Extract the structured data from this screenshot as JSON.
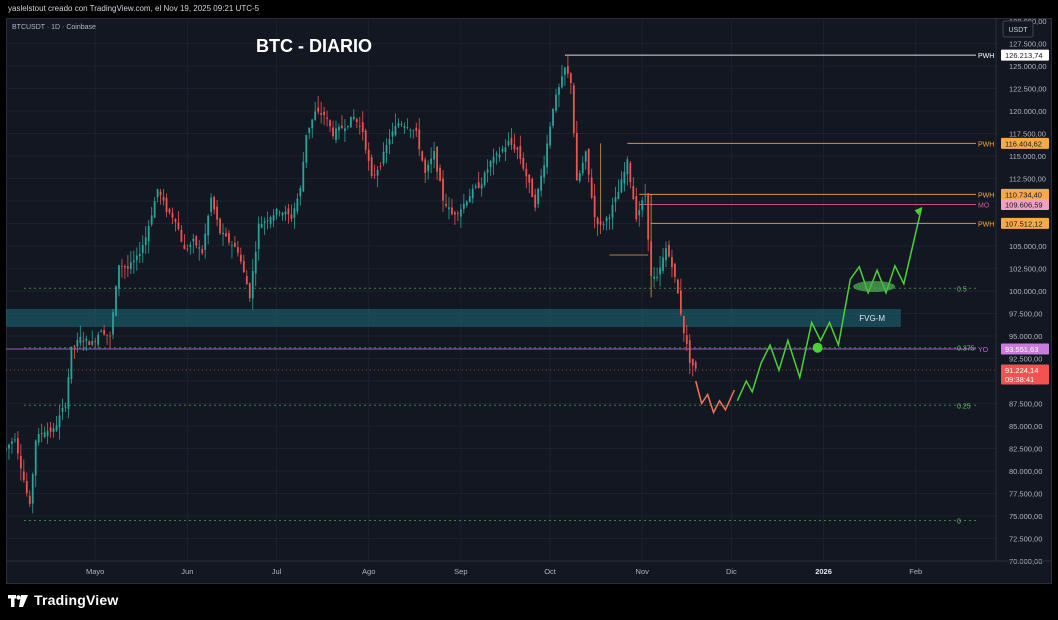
{
  "header": {
    "caption": "yaslelstout creado con TradingView.com, el Nov 19, 2025 09:21 UTC-5"
  },
  "footer": {
    "brand": "TradingView",
    "logo_icon": "tradingview-logo-icon"
  },
  "chart_data": {
    "type": "candlestick",
    "symbol_label": "BTCUSDT · 1D · Coinbase",
    "title": "BTC - DIARIO",
    "currency": "USDT",
    "ylim": [
      70000,
      130000
    ],
    "y_ticks": [
      "70.000,00",
      "72.500,00",
      "75.000,00",
      "77.500,00",
      "80.000,00",
      "82.500,00",
      "85.000,00",
      "87.500,00",
      "90.000,00",
      "92.500,00",
      "95.000,00",
      "97.500,00",
      "100.000,00",
      "102.500,00",
      "105.000,00",
      "107.500,00",
      "110.000,00",
      "112.500,00",
      "115.000,00",
      "117.500,00",
      "120.000,00",
      "122.500,00",
      "125.000,00",
      "127.500,00"
    ],
    "y_tick_values": [
      70000,
      72500,
      75000,
      77500,
      80000,
      82500,
      85000,
      87500,
      90000,
      92500,
      95000,
      97500,
      100000,
      102500,
      105000,
      107500,
      110000,
      112500,
      115000,
      117500,
      120000,
      122500,
      125000,
      127500
    ],
    "x_labels": [
      "Mayo",
      "Jun",
      "Jul",
      "Ago",
      "Sep",
      "Oct",
      "Nov",
      "Dic",
      "2026",
      "Feb"
    ],
    "x_label_dates": [
      "2025-05-01",
      "2025-06-01",
      "2025-07-01",
      "2025-08-01",
      "2025-09-01",
      "2025-10-01",
      "2025-11-01",
      "2025-12-01",
      "2026-01-01",
      "2026-02-01"
    ],
    "x_range": [
      "2025-04-01",
      "2026-02-28"
    ],
    "close_series": [
      [
        "2025-04-01",
        82500
      ],
      [
        "2025-04-04",
        83800
      ],
      [
        "2025-04-07",
        79000
      ],
      [
        "2025-04-09",
        76000
      ],
      [
        "2025-04-11",
        83500
      ],
      [
        "2025-04-14",
        84500
      ],
      [
        "2025-04-17",
        84500
      ],
      [
        "2025-04-21",
        87500
      ],
      [
        "2025-04-23",
        93500
      ],
      [
        "2025-04-26",
        94700
      ],
      [
        "2025-04-30",
        94200
      ],
      [
        "2025-05-03",
        95800
      ],
      [
        "2025-05-06",
        94800
      ],
      [
        "2025-05-09",
        103000
      ],
      [
        "2025-05-12",
        102500
      ],
      [
        "2025-05-15",
        103600
      ],
      [
        "2025-05-18",
        106000
      ],
      [
        "2025-05-22",
        111300
      ],
      [
        "2025-05-25",
        109000
      ],
      [
        "2025-05-28",
        108000
      ],
      [
        "2025-05-31",
        104500
      ],
      [
        "2025-06-03",
        105500
      ],
      [
        "2025-06-06",
        104300
      ],
      [
        "2025-06-09",
        110300
      ],
      [
        "2025-06-12",
        106500
      ],
      [
        "2025-06-15",
        105500
      ],
      [
        "2025-06-18",
        104500
      ],
      [
        "2025-06-22",
        99500
      ],
      [
        "2025-06-25",
        107300
      ],
      [
        "2025-06-29",
        108400
      ],
      [
        "2025-07-02",
        109000
      ],
      [
        "2025-07-06",
        108200
      ],
      [
        "2025-07-09",
        111300
      ],
      [
        "2025-07-11",
        117500
      ],
      [
        "2025-07-14",
        119800
      ],
      [
        "2025-07-17",
        119600
      ],
      [
        "2025-07-20",
        117500
      ],
      [
        "2025-07-24",
        118400
      ],
      [
        "2025-07-27",
        119300
      ],
      [
        "2025-07-30",
        117800
      ],
      [
        "2025-08-02",
        112500
      ],
      [
        "2025-08-05",
        114200
      ],
      [
        "2025-08-08",
        117000
      ],
      [
        "2025-08-11",
        118700
      ],
      [
        "2025-08-14",
        118500
      ],
      [
        "2025-08-17",
        117500
      ],
      [
        "2025-08-20",
        113000
      ],
      [
        "2025-08-23",
        115300
      ],
      [
        "2025-08-26",
        110200
      ],
      [
        "2025-08-29",
        108500
      ],
      [
        "2025-09-01",
        109200
      ],
      [
        "2025-09-04",
        110700
      ],
      [
        "2025-09-08",
        112100
      ],
      [
        "2025-09-11",
        114300
      ],
      [
        "2025-09-14",
        115300
      ],
      [
        "2025-09-17",
        116500
      ],
      [
        "2025-09-20",
        115700
      ],
      [
        "2025-09-23",
        112800
      ],
      [
        "2025-09-26",
        109600
      ],
      [
        "2025-09-29",
        114300
      ],
      [
        "2025-10-02",
        120500
      ],
      [
        "2025-10-05",
        123500
      ],
      [
        "2025-10-06",
        124700
      ],
      [
        "2025-10-08",
        123300
      ],
      [
        "2025-10-10",
        112000
      ],
      [
        "2025-10-13",
        115200
      ],
      [
        "2025-10-16",
        108200
      ],
      [
        "2025-10-18",
        107200
      ],
      [
        "2025-10-21",
        108500
      ],
      [
        "2025-10-24",
        111000
      ],
      [
        "2025-10-27",
        114300
      ],
      [
        "2025-10-30",
        108300
      ],
      [
        "2025-11-02",
        110600
      ],
      [
        "2025-11-04",
        101500
      ],
      [
        "2025-11-06",
        101300
      ],
      [
        "2025-11-09",
        104700
      ],
      [
        "2025-11-11",
        103000
      ],
      [
        "2025-11-13",
        99700
      ],
      [
        "2025-11-15",
        95500
      ],
      [
        "2025-11-17",
        92300
      ],
      [
        "2025-11-19",
        91200
      ]
    ],
    "levels": [
      {
        "label": "PWH",
        "value": 126213.74,
        "text": "126.213,74",
        "color": "#ffffff",
        "tag_bg": "#ffffff",
        "tag_fg": "#131722"
      },
      {
        "label": "PWH",
        "value": 116404.62,
        "text": "116.404,62",
        "color": "#f7a94a",
        "tag_bg": "#f7a94a",
        "tag_fg": "#131722"
      },
      {
        "label": "PWH",
        "value": 110734.4,
        "text": "110.734,40",
        "color": "#f7a94a",
        "tag_bg": "#f7a94a",
        "tag_fg": "#131722"
      },
      {
        "label": "MO",
        "value": 109606.59,
        "text": "109.606,59",
        "color": "#e05a9a",
        "tag_bg": "#f0a0c0",
        "tag_fg": "#131722"
      },
      {
        "label": "PWH",
        "value": 107512.12,
        "text": "107.512,12",
        "color": "#f7a94a",
        "tag_bg": "#f7a94a",
        "tag_fg": "#131722"
      },
      {
        "label": "YO",
        "value": 93551.63,
        "text": "93.551,63",
        "color": "#b46bd9",
        "tag_bg": "#c77dd9",
        "tag_fg": "#ffffff"
      }
    ],
    "last_price": {
      "value": 91224.14,
      "text": "91.224,14",
      "countdown": "09:38:41",
      "color": "#f05350"
    },
    "fib_levels": [
      {
        "label": "0.5",
        "value": 100300
      },
      {
        "label": "0.375",
        "value": 93700
      },
      {
        "label": "0.25",
        "value": 87300
      },
      {
        "label": "0",
        "value": 74500
      }
    ],
    "fvg_zone": {
      "label": "FVG-M",
      "from": 96000,
      "to": 98000
    },
    "projection_red": [
      [
        "2025-11-19",
        90000
      ],
      [
        "2025-11-21",
        87500
      ],
      [
        "2025-11-23",
        88500
      ],
      [
        "2025-11-25",
        86500
      ],
      [
        "2025-11-27",
        87800
      ],
      [
        "2025-11-29",
        86800
      ],
      [
        "2025-12-02",
        89000
      ]
    ],
    "projection_green": [
      [
        "2025-12-03",
        87800
      ],
      [
        "2025-12-06",
        90000
      ],
      [
        "2025-12-08",
        88800
      ],
      [
        "2025-12-11",
        92000
      ],
      [
        "2025-12-14",
        94000
      ],
      [
        "2025-12-17",
        91200
      ],
      [
        "2025-12-20",
        94500
      ],
      [
        "2025-12-24",
        90400
      ],
      [
        "2025-12-28",
        96500
      ],
      [
        "2025-12-31",
        94500
      ],
      [
        "2026-01-03",
        96500
      ],
      [
        "2026-01-06",
        94000
      ],
      [
        "2026-01-10",
        101300
      ],
      [
        "2026-01-13",
        102700
      ],
      [
        "2026-01-16",
        99800
      ],
      [
        "2026-01-19",
        102300
      ],
      [
        "2026-01-22",
        99800
      ],
      [
        "2026-01-25",
        102800
      ],
      [
        "2026-01-28",
        100800
      ],
      [
        "2026-02-03",
        109300
      ]
    ]
  }
}
